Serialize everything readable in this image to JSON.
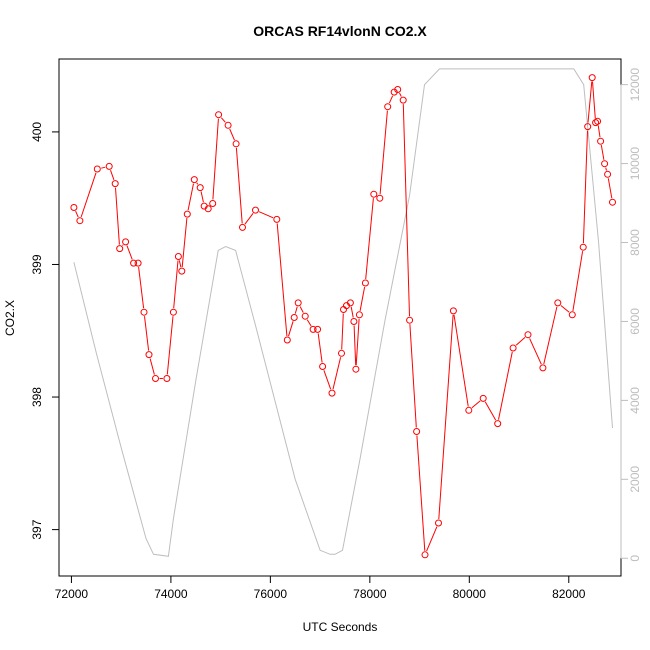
{
  "chart_data": {
    "type": "line",
    "title": "ORCAS RF14vlonN CO2.X",
    "xlabel": "UTC Seconds",
    "ylabel": "CO2.X",
    "y2label": "",
    "xlim": [
      71750,
      83050
    ],
    "ylim": [
      396.65,
      400.55
    ],
    "y2lim": [
      -450,
      12650
    ],
    "x_ticks": [
      72000,
      74000,
      76000,
      78000,
      80000,
      82000
    ],
    "y_ticks": [
      397,
      398,
      399,
      400
    ],
    "y2_ticks": [
      0,
      2000,
      4000,
      6000,
      8000,
      10000,
      12000
    ],
    "grid": false,
    "colors": {
      "primary": "#ff0000",
      "secondary": "#bebebe",
      "axis": "#000000",
      "right_axis": "#bdbdbd"
    },
    "series": [
      {
        "name": "CO2.X",
        "axis": "left",
        "style": "line+points",
        "color": "#ff0000",
        "x": [
          72050,
          72170,
          72520,
          72760,
          72880,
          72970,
          73090,
          73250,
          73340,
          73460,
          73560,
          73690,
          73920,
          74050,
          74150,
          74220,
          74330,
          74470,
          74590,
          74670,
          74750,
          74840,
          74960,
          75150,
          75310,
          75440,
          75700,
          76130,
          76340,
          76480,
          76560,
          76700,
          76860,
          76950,
          77050,
          77240,
          77430,
          77470,
          77530,
          77610,
          77680,
          77720,
          77790,
          77910,
          78080,
          78200,
          78360,
          78490,
          78560,
          78670,
          78800,
          78940,
          79110,
          79380,
          79680,
          79990,
          80280,
          80570,
          80880,
          81180,
          81480,
          81780,
          82070,
          82290,
          82380,
          82470,
          82540,
          82580,
          82640,
          82720,
          82780,
          82880
        ],
        "y": [
          399.43,
          399.33,
          399.72,
          399.74,
          399.61,
          399.12,
          399.17,
          399.01,
          399.01,
          398.64,
          398.32,
          398.14,
          398.14,
          398.64,
          399.06,
          398.95,
          399.38,
          399.64,
          399.58,
          399.44,
          399.42,
          399.46,
          400.13,
          400.05,
          399.91,
          399.28,
          399.41,
          399.34,
          398.43,
          398.6,
          398.71,
          398.61,
          398.51,
          398.51,
          398.23,
          398.03,
          398.33,
          398.66,
          398.69,
          398.71,
          398.57,
          398.21,
          398.62,
          398.86,
          399.53,
          399.5,
          400.19,
          400.3,
          400.32,
          400.24,
          398.58,
          397.74,
          396.81,
          397.05,
          398.65,
          397.9,
          397.99,
          397.8,
          398.37,
          398.47,
          398.22,
          398.71,
          398.62,
          399.13,
          400.04,
          400.41,
          400.07,
          400.08,
          399.93,
          399.76,
          399.68,
          399.47
        ]
      },
      {
        "name": "",
        "axis": "right",
        "style": "line",
        "color": "#bebebe",
        "x": [
          72050,
          72500,
          73000,
          73500,
          73650,
          73950,
          74050,
          74500,
          74950,
          75100,
          75300,
          75700,
          76500,
          77000,
          77200,
          77300,
          77450,
          77800,
          78300,
          78800,
          79100,
          79400,
          80000,
          81000,
          82000,
          82100,
          82300,
          82600,
          82880
        ],
        "y": [
          7500,
          5200,
          2800,
          500,
          100,
          50,
          1000,
          4500,
          7800,
          7900,
          7800,
          5900,
          2000,
          200,
          100,
          100,
          200,
          2500,
          6000,
          9200,
          12000,
          12400,
          12400,
          12400,
          12400,
          12400,
          12000,
          8000,
          3300
        ]
      }
    ]
  }
}
